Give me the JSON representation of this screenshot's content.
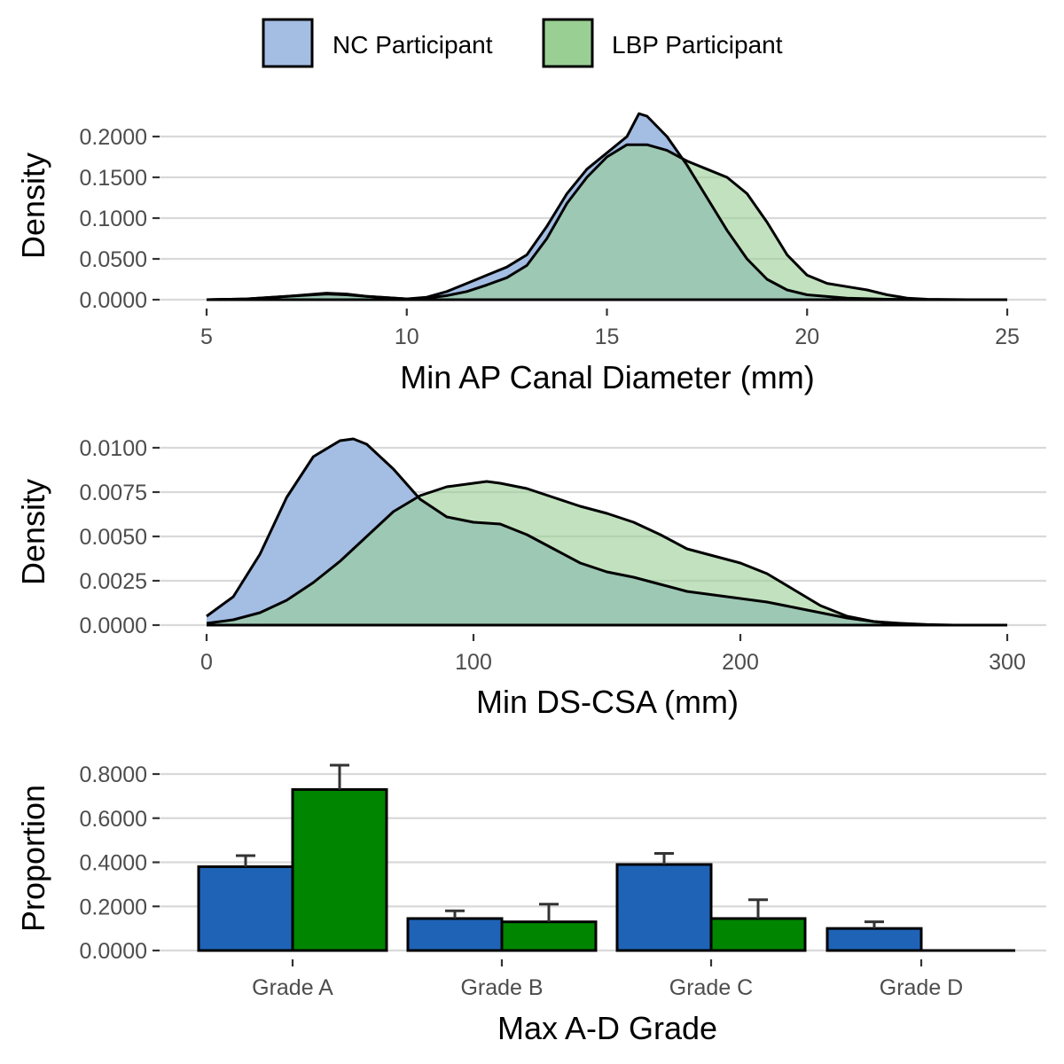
{
  "legend": {
    "entries": [
      {
        "label": "NC Participant",
        "color": "#a4bde3"
      },
      {
        "label": "LBP Participant",
        "color": "#9acf94"
      }
    ]
  },
  "colors": {
    "nc_fill": "#a4bde3",
    "lbp_fill": "#9acf94",
    "overlap_fill": "#62a886",
    "bar_nc": "#1f63b7",
    "bar_lbp": "#008500",
    "outline": "#000000",
    "error_bar": "#333333"
  },
  "chart_data": [
    {
      "type": "area",
      "subtype": "density",
      "xlabel": "Min AP Canal Diameter (mm)",
      "ylabel": "Density",
      "xlim": [
        5,
        25
      ],
      "ylim": [
        0,
        0.2
      ],
      "xticks": [
        5,
        10,
        15,
        20,
        25
      ],
      "xtick_labels": [
        "5",
        "10",
        "15",
        "20",
        "25"
      ],
      "yticks": [
        0,
        0.05,
        0.1,
        0.15,
        0.2
      ],
      "ytick_labels": [
        "0.0000",
        "0.0500",
        "0.1000",
        "0.1500",
        "0.2000"
      ],
      "series": [
        {
          "name": "NC Participant",
          "x": [
            5,
            6,
            7,
            8,
            8.5,
            9,
            10,
            10.5,
            11,
            11.5,
            12,
            12.5,
            13,
            13.5,
            14,
            14.5,
            15,
            15.5,
            15.8,
            16,
            16.5,
            17,
            17.5,
            18,
            18.5,
            19,
            19.5,
            20,
            21,
            22,
            23
          ],
          "y": [
            0,
            0.001,
            0.004,
            0.008,
            0.007,
            0.004,
            0.001,
            0.003,
            0.01,
            0.02,
            0.03,
            0.04,
            0.055,
            0.09,
            0.13,
            0.16,
            0.18,
            0.2,
            0.228,
            0.225,
            0.2,
            0.165,
            0.125,
            0.085,
            0.05,
            0.025,
            0.012,
            0.006,
            0.002,
            0.0005,
            0
          ]
        },
        {
          "name": "LBP Participant",
          "x": [
            5,
            6,
            7,
            8,
            8.5,
            9,
            10,
            10.5,
            11,
            11.5,
            12,
            12.5,
            13,
            13.5,
            14,
            14.5,
            15,
            15.5,
            16,
            16.5,
            17,
            17.5,
            18,
            18.5,
            19,
            19.5,
            20,
            20.5,
            21,
            21.5,
            22,
            22.5,
            23,
            24,
            25
          ],
          "y": [
            0,
            0.001,
            0.004,
            0.007,
            0.006,
            0.004,
            0.001,
            0.002,
            0.005,
            0.01,
            0.018,
            0.027,
            0.042,
            0.075,
            0.118,
            0.15,
            0.175,
            0.19,
            0.19,
            0.183,
            0.17,
            0.16,
            0.15,
            0.13,
            0.095,
            0.055,
            0.03,
            0.02,
            0.016,
            0.012,
            0.006,
            0.002,
            0.0005,
            0,
            0
          ]
        }
      ]
    },
    {
      "type": "area",
      "subtype": "density",
      "xlabel": "Min DS-CSA (mm)",
      "ylabel": "Density",
      "xlim": [
        0,
        300
      ],
      "ylim": [
        0,
        0.01
      ],
      "xticks": [
        0,
        100,
        200,
        300
      ],
      "xtick_labels": [
        "0",
        "100",
        "200",
        "300"
      ],
      "yticks": [
        0,
        0.0025,
        0.005,
        0.0075,
        0.01
      ],
      "ytick_labels": [
        "0.0000",
        "0.0025",
        "0.0050",
        "0.0075",
        "0.0100"
      ],
      "series": [
        {
          "name": "NC Participant",
          "x": [
            0,
            10,
            20,
            30,
            40,
            50,
            55,
            60,
            70,
            80,
            90,
            100,
            110,
            120,
            130,
            140,
            150,
            160,
            170,
            180,
            190,
            200,
            210,
            220,
            230,
            240,
            250,
            260,
            270,
            280,
            300
          ],
          "y": [
            0.0005,
            0.0016,
            0.004,
            0.0072,
            0.0095,
            0.0104,
            0.0105,
            0.0102,
            0.0088,
            0.0071,
            0.0061,
            0.0058,
            0.0057,
            0.0051,
            0.0043,
            0.0035,
            0.003,
            0.0027,
            0.0023,
            0.0019,
            0.0017,
            0.0015,
            0.0013,
            0.001,
            0.0007,
            0.0004,
            0.0002,
            0.0001,
            3e-05,
            0,
            0
          ]
        },
        {
          "name": "LBP Participant",
          "x": [
            0,
            10,
            20,
            30,
            40,
            50,
            60,
            70,
            80,
            90,
            100,
            105,
            110,
            120,
            130,
            140,
            150,
            160,
            170,
            180,
            190,
            200,
            210,
            220,
            230,
            240,
            250,
            260,
            270,
            280,
            300
          ],
          "y": [
            0.0001,
            0.0003,
            0.0007,
            0.0014,
            0.0024,
            0.0036,
            0.005,
            0.0064,
            0.0073,
            0.0078,
            0.008,
            0.0081,
            0.008,
            0.0077,
            0.0072,
            0.0067,
            0.0063,
            0.0058,
            0.0051,
            0.0043,
            0.0039,
            0.0035,
            0.0029,
            0.002,
            0.0011,
            0.0005,
            0.0002,
            6e-05,
            0,
            0,
            0
          ]
        }
      ]
    },
    {
      "type": "bar",
      "xlabel": "Max A-D Grade",
      "ylabel": "Proportion",
      "ylim": [
        0,
        0.85
      ],
      "yticks": [
        0,
        0.2,
        0.4,
        0.6,
        0.8
      ],
      "ytick_labels": [
        "0.0000",
        "0.2000",
        "0.4000",
        "0.6000",
        "0.8000"
      ],
      "categories": [
        "Grade A",
        "Grade B",
        "Grade C",
        "Grade D"
      ],
      "series": [
        {
          "name": "NC Participant",
          "values": [
            0.38,
            0.145,
            0.39,
            0.1
          ],
          "error_upper": [
            0.43,
            0.18,
            0.44,
            0.13
          ]
        },
        {
          "name": "LBP Participant",
          "values": [
            0.73,
            0.13,
            0.145,
            0.0
          ],
          "error_upper": [
            0.84,
            0.21,
            0.23,
            0.0
          ]
        }
      ]
    }
  ]
}
